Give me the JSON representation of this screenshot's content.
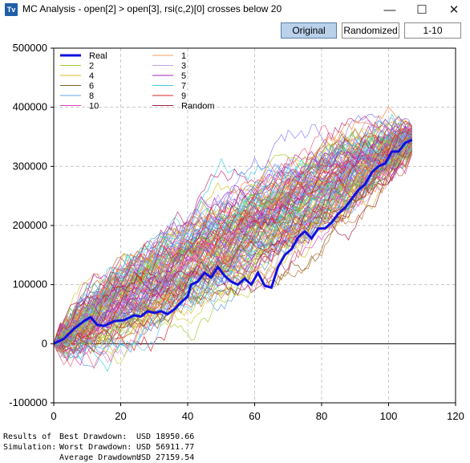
{
  "window": {
    "icon_text": "Tv",
    "title": "MC Analysis - open[2] > open[3], rsi(c,2)[0] crosses below 20",
    "minimize_glyph": "—",
    "maximize_glyph": "☐",
    "close_glyph": "✕"
  },
  "toolbar": {
    "original_label": "Original",
    "randomized_label": "Randomized",
    "range_label": "1-10",
    "active": "Original"
  },
  "results": {
    "label_line1": "Results of",
    "label_line2": "Simulation:",
    "best_label": "Best Drawdown:",
    "best_value": "USD 18950.66",
    "worst_label": "Worst Drawdown:",
    "worst_value": "USD 56911.77",
    "avg_label": "Average Drawdown:",
    "avg_value": "USD 27159.54"
  },
  "chart_data": {
    "type": "line",
    "xlim": [
      0,
      120
    ],
    "ylim": [
      -100000,
      500000
    ],
    "x_ticks": [
      0,
      20,
      40,
      60,
      80,
      100,
      120
    ],
    "x_tick_labels": [
      "0",
      "20",
      "40",
      "60",
      "80",
      "100",
      "120"
    ],
    "y_ticks": [
      -100000,
      0,
      100000,
      200000,
      300000,
      400000,
      500000
    ],
    "y_tick_labels": [
      "-100000",
      "0",
      "100000",
      "200000",
      "300000",
      "400000",
      "500000"
    ],
    "grid": true,
    "legend_position": "top-left",
    "legend": [
      {
        "name": "Real",
        "color": "#1010e0",
        "bold": true
      },
      {
        "name": "1",
        "color": "#f0a060"
      },
      {
        "name": "2",
        "color": "#a0d030"
      },
      {
        "name": "3",
        "color": "#c0a0e0"
      },
      {
        "name": "4",
        "color": "#d0c020"
      },
      {
        "name": "5",
        "color": "#a020c0"
      },
      {
        "name": "6",
        "color": "#806020"
      },
      {
        "name": "7",
        "color": "#40d0e0"
      },
      {
        "name": "8",
        "color": "#60a0f0"
      },
      {
        "name": "9",
        "color": "#e02020"
      },
      {
        "name": "10",
        "color": "#e040c0"
      },
      {
        "name": "Random",
        "color": "#a02040"
      }
    ],
    "series": [
      {
        "name": "Real",
        "color": "#1010e0",
        "x": [
          0,
          3,
          6,
          9,
          11,
          13,
          15,
          18,
          21,
          24,
          26,
          28,
          30,
          32,
          34,
          36,
          38,
          40,
          41,
          43,
          45,
          47,
          49,
          51,
          53,
          55,
          57,
          59,
          61,
          63,
          65,
          67,
          69,
          71,
          73,
          75,
          77,
          79,
          81,
          83,
          85,
          87,
          89,
          91,
          93,
          95,
          97,
          99,
          101,
          103,
          105,
          107
        ],
        "y": [
          0,
          8000,
          25000,
          38000,
          45000,
          32000,
          30000,
          38000,
          40000,
          48000,
          46000,
          55000,
          52000,
          55000,
          50000,
          58000,
          70000,
          80000,
          100000,
          105000,
          120000,
          112000,
          130000,
          115000,
          105000,
          100000,
          110000,
          100000,
          120000,
          98000,
          95000,
          130000,
          150000,
          160000,
          180000,
          190000,
          178000,
          195000,
          195000,
          205000,
          220000,
          230000,
          245000,
          260000,
          270000,
          290000,
          300000,
          305000,
          325000,
          325000,
          340000,
          345000
        ]
      }
    ],
    "random_series_count": 120,
    "random_series_length": 107,
    "random_series_start": 0,
    "random_series_end_range": [
      320000,
      370000
    ]
  }
}
